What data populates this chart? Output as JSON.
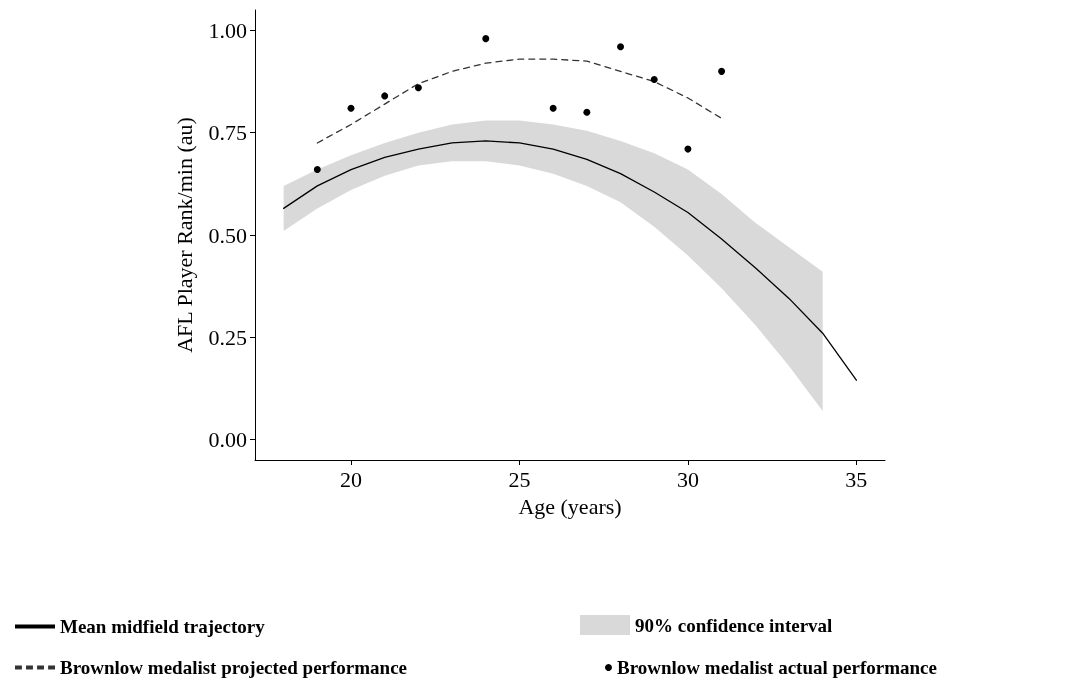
{
  "chart_data": {
    "type": "line",
    "xlabel": "Age (years)",
    "ylabel": "AFL Player Rank/min (au)",
    "xlim": [
      17.15,
      35.85
    ],
    "xticks": [
      20,
      25,
      30,
      35
    ],
    "ylim": [
      -0.05,
      1.05
    ],
    "yticks": [
      {
        "value": 0,
        "label": "0.00"
      },
      {
        "value": 0.25,
        "label": "0.25"
      },
      {
        "value": 0.5,
        "label": "0.50"
      },
      {
        "value": 0.75,
        "label": "0.75"
      },
      {
        "value": 1,
        "label": "1.00"
      }
    ],
    "grid": false,
    "legend": "bottom",
    "series": [
      {
        "name": "Mean midfield trajectory",
        "line_style": "solid",
        "marker": "none",
        "color": "#000000",
        "x": [
          18,
          19,
          20,
          21,
          22,
          23,
          24,
          25,
          26,
          27,
          28,
          29,
          30,
          31,
          32,
          33,
          34,
          35
        ],
        "values": [
          0.565,
          0.62,
          0.66,
          0.69,
          0.71,
          0.725,
          0.73,
          0.725,
          0.71,
          0.685,
          0.65,
          0.605,
          0.555,
          0.49,
          0.42,
          0.345,
          0.26,
          0.145
        ],
        "lower": [
          0.51,
          0.565,
          0.61,
          0.645,
          0.67,
          0.68,
          0.68,
          0.67,
          0.65,
          0.62,
          0.58,
          0.52,
          0.45,
          0.37,
          0.28,
          0.18,
          0.07,
          null
        ],
        "upper": [
          0.62,
          0.66,
          0.695,
          0.725,
          0.75,
          0.77,
          0.78,
          0.78,
          0.77,
          0.755,
          0.73,
          0.7,
          0.66,
          0.6,
          0.53,
          0.47,
          0.41,
          null
        ]
      },
      {
        "name": "90% confidence interval",
        "type": "area",
        "color": "#d9d9d9"
      },
      {
        "name": "Brownlow medalist projected performance",
        "type": "line",
        "line_style": "dashed",
        "marker": "none",
        "color": "#333333",
        "x": [
          19,
          20,
          21,
          22,
          23,
          24,
          25,
          26,
          27,
          28,
          29,
          30,
          31
        ],
        "values": [
          0.725,
          0.77,
          0.82,
          0.87,
          0.9,
          0.92,
          0.93,
          0.93,
          0.925,
          0.9,
          0.875,
          0.835,
          0.785
        ]
      },
      {
        "name": "Brownlow medalist actual performance",
        "type": "scatter",
        "marker": "circle",
        "color": "#000000",
        "x": [
          19,
          20,
          21,
          22,
          24,
          26,
          27,
          28,
          29,
          30,
          31
        ],
        "values": [
          0.66,
          0.81,
          0.84,
          0.86,
          0.98,
          0.81,
          0.8,
          0.96,
          0.88,
          0.71,
          0.9
        ]
      }
    ]
  }
}
